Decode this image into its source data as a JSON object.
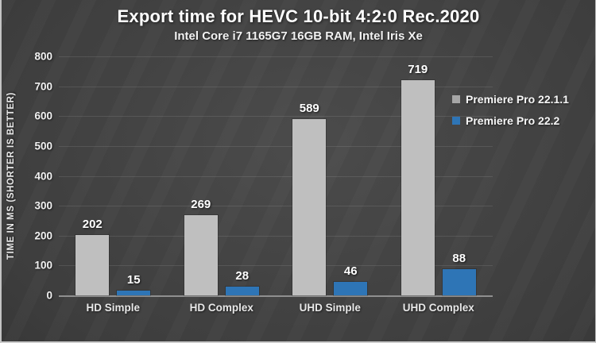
{
  "chart_data": {
    "type": "bar",
    "title": "Export time for HEVC 10-bit 4:2:0 Rec.2020",
    "subtitle": "Intel Core i7 1165G7 16GB RAM, Intel Iris Xe",
    "ylabel": "TIME IN MS (SHORTER IS BETTER)",
    "xlabel": "",
    "categories": [
      "HD Simple",
      "HD Complex",
      "UHD Simple",
      "UHD Complex"
    ],
    "series": [
      {
        "name": "Premiere Pro 22.1.1",
        "color": "#bfbfbf",
        "marker_color": "#a6a6a6",
        "values": [
          202,
          269,
          589,
          719
        ]
      },
      {
        "name": "Premiere Pro 22.2",
        "color": "#2e75b6",
        "marker_color": "#2e75b6",
        "values": [
          15,
          28,
          46,
          88
        ]
      }
    ],
    "ylim": [
      0,
      800
    ],
    "ytick_step": 100,
    "grid": true,
    "legend_position": "right-inside",
    "colors": {
      "background_center": "#4b4b4b",
      "background_edge": "#232323",
      "axis_line": "#8f8f8f",
      "gridline_alpha": "rgba(255,255,255,0.10)",
      "text": "#ffffff"
    }
  }
}
